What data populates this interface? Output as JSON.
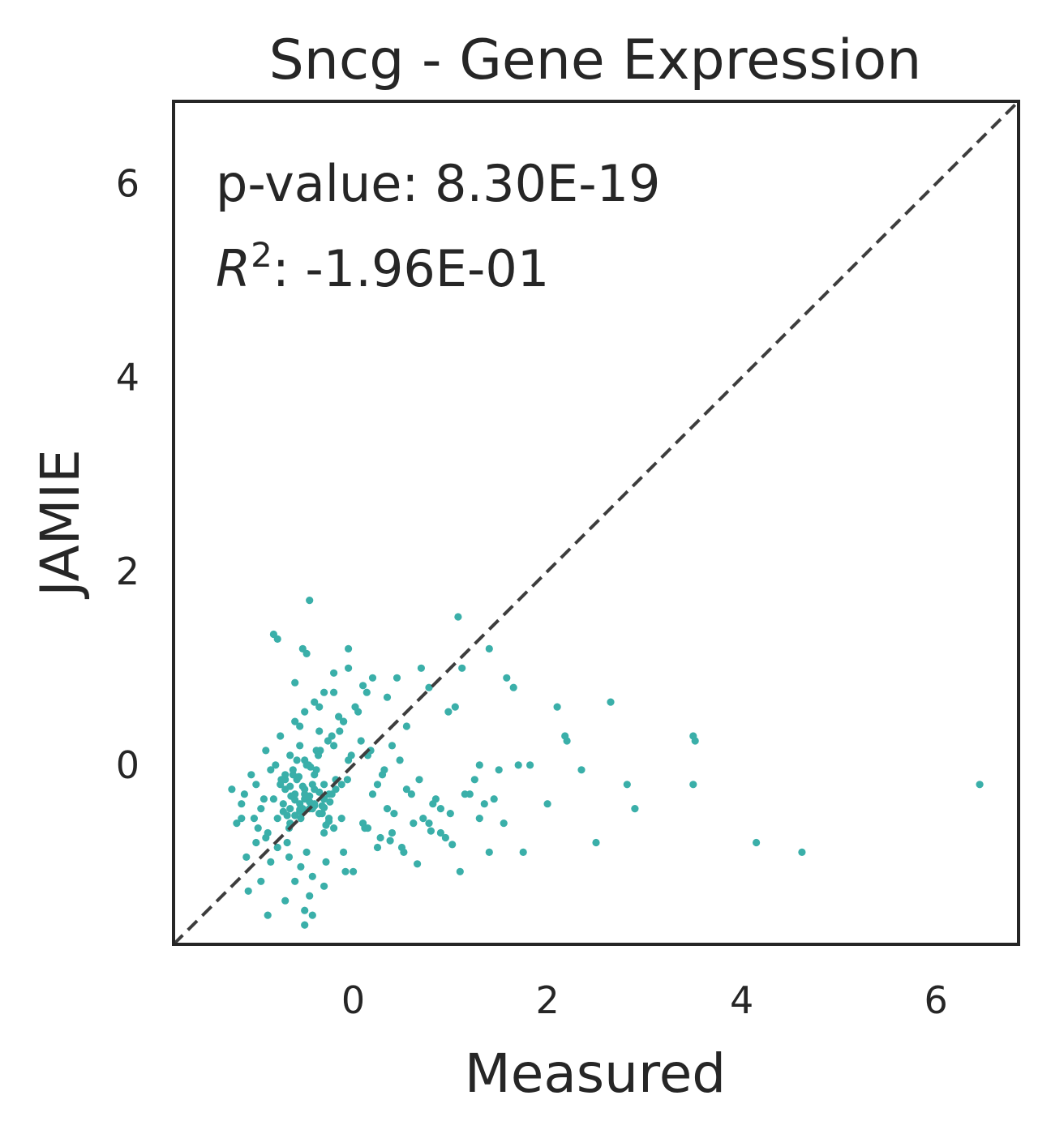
{
  "chart_data": {
    "type": "scatter",
    "title": "Sncg - Gene Expression",
    "xlabel": "Measured",
    "ylabel": "JAMIE",
    "xlim": [
      -1.85,
      6.85
    ],
    "ylim": [
      -1.85,
      6.85
    ],
    "xticks": [
      0,
      2,
      4,
      6
    ],
    "yticks": [
      0,
      2,
      4,
      6
    ],
    "grid": false,
    "point_color": "#3aafa9",
    "reference_line": {
      "style": "dashed",
      "color": "#3d3d3d",
      "slope": 1,
      "intercept": 0
    },
    "annotations": {
      "pvalue_label": "p-value: 8.30E-19",
      "r2_symbol": "R",
      "r2_exponent": "2",
      "r2_value": ": -1.96E-01"
    },
    "series": [
      {
        "values_note_excluded": false,
        "x": [
          -0.45,
          1.08,
          -0.78,
          -0.82,
          -0.48,
          -0.52,
          -0.05,
          0.2,
          -0.6,
          -0.3,
          0.45,
          0.7,
          1.4,
          1.65,
          1.58,
          1.12,
          1.05,
          0.78,
          0.35,
          -0.1,
          -0.2,
          0.05,
          2.65,
          2.1,
          2.2,
          2.35,
          2.18,
          3.5,
          3.52,
          3.5,
          2.82,
          2.9,
          2.0,
          1.75,
          1.55,
          1.3,
          1.4,
          1.1,
          0.95,
          0.82,
          6.45,
          4.15,
          4.62,
          2.5,
          1.82,
          1.3,
          0.98,
          0.55,
          0.4,
          0.48,
          0.3,
          0.15,
          0.2,
          0.42,
          -0.15,
          -0.35,
          -0.55,
          -0.75,
          -0.9,
          -1.05,
          -1.15,
          -1.2,
          -1.0,
          -0.85,
          -0.6,
          -0.45,
          -0.5,
          -0.7,
          -0.95,
          -1.1,
          -0.3,
          -0.1,
          0.0,
          0.1,
          -0.25,
          -0.4,
          -0.65,
          -0.8,
          -0.55,
          -0.35,
          -0.2,
          -0.05,
          0.25,
          0.35,
          0.6,
          0.72,
          0.85,
          1.0,
          1.25,
          1.5,
          1.7,
          1.35,
          1.2,
          0.9,
          0.62,
          0.5,
          0.28,
          0.12,
          -0.12,
          -0.32,
          -0.52,
          -0.72,
          -0.92,
          -1.12,
          -1.25,
          -0.88,
          -0.68,
          -0.48,
          -0.28,
          -0.08,
          -0.62,
          -0.42,
          -0.22,
          -0.58,
          -0.38,
          -0.18,
          -0.78,
          -0.98,
          -0.5,
          -0.45,
          -0.4,
          -0.55,
          -0.6,
          -0.35,
          -0.3,
          -0.65,
          -0.7,
          -0.25,
          -0.2,
          -0.75,
          -0.5,
          -0.45,
          -0.4,
          -0.55,
          -0.6,
          -0.35,
          -0.3,
          -0.65,
          -0.7,
          -0.25,
          -0.5,
          -0.45,
          -0.4,
          -0.55,
          -0.6,
          -0.35,
          -0.3,
          -0.65,
          0.32,
          0.18,
          0.08,
          -0.02,
          -0.12,
          0.55,
          0.68,
          0.78,
          0.9,
          1.15,
          1.45,
          0.4,
          0.25,
          -0.85,
          -1.0,
          -1.15,
          -0.95,
          -0.82,
          -0.7,
          -0.58,
          -0.46,
          -0.34,
          -0.22,
          -0.1,
          0.02,
          0.14,
          -0.66,
          -0.54,
          -0.42,
          -0.3,
          -0.18,
          -0.06,
          -0.74,
          -0.62,
          -0.5,
          -0.38,
          -0.26,
          -0.14,
          -0.9,
          -0.78,
          -0.66,
          -0.54,
          -0.42,
          -0.3,
          -0.5,
          -0.4,
          -0.6,
          -0.48,
          -0.36,
          -0.56,
          -0.44,
          -0.52,
          -0.64,
          -0.32,
          -0.28,
          -0.68,
          -0.72,
          -0.24,
          0.15,
          0.38,
          0.52,
          0.66,
          0.8,
          1.02,
          -0.2,
          -0.05,
          0.1,
          -0.88,
          -1.02,
          -1.08,
          -0.5,
          -0.42
        ],
        "y": [
          1.7,
          1.53,
          1.3,
          1.35,
          1.15,
          1.2,
          1.2,
          0.9,
          0.85,
          0.75,
          0.9,
          1.0,
          1.2,
          0.8,
          0.9,
          1.0,
          0.6,
          0.8,
          0.7,
          0.45,
          0.75,
          0.55,
          0.65,
          0.6,
          0.25,
          -0.05,
          0.3,
          0.3,
          0.25,
          -0.2,
          -0.2,
          -0.45,
          -0.4,
          -0.9,
          -0.6,
          -0.55,
          -0.9,
          -1.1,
          -0.75,
          -0.4,
          -0.2,
          -0.8,
          -0.9,
          -0.8,
          0.0,
          0.0,
          0.55,
          0.4,
          0.2,
          0.05,
          -0.1,
          0.1,
          -0.3,
          -0.5,
          0.5,
          0.6,
          0.4,
          0.3,
          0.15,
          -0.1,
          -0.4,
          -0.6,
          -0.8,
          -1.0,
          -1.2,
          -1.35,
          -1.5,
          -1.4,
          -1.2,
          -0.95,
          -0.7,
          -0.9,
          -1.1,
          -0.6,
          -0.3,
          -0.1,
          0.1,
          0.0,
          0.2,
          0.35,
          0.2,
          0.05,
          -0.2,
          -0.45,
          -0.3,
          -0.55,
          -0.35,
          -0.5,
          -0.15,
          -0.05,
          0.0,
          -0.4,
          -0.3,
          -0.7,
          -0.6,
          -0.85,
          -0.75,
          -0.65,
          -0.55,
          -0.5,
          -0.45,
          -0.4,
          -0.35,
          -0.3,
          -0.25,
          -0.7,
          -0.8,
          -0.9,
          -1.0,
          -1.1,
          -0.1,
          -0.2,
          -0.3,
          0.05,
          -0.05,
          -0.15,
          -0.55,
          -0.65,
          -0.35,
          -0.45,
          -0.25,
          -0.4,
          -0.3,
          -0.5,
          -0.2,
          -0.6,
          -0.1,
          -0.55,
          -0.65,
          -0.2,
          -0.3,
          -0.38,
          -0.42,
          -0.48,
          -0.52,
          -0.28,
          -0.35,
          -0.45,
          -0.15,
          -0.58,
          -0.25,
          -0.32,
          -0.4,
          -0.46,
          -0.36,
          -0.5,
          -0.44,
          -0.22,
          -0.05,
          0.15,
          0.25,
          0.1,
          -0.2,
          -0.25,
          -0.15,
          -0.6,
          -0.45,
          -0.3,
          -0.35,
          -0.7,
          -0.85,
          -0.05,
          -0.2,
          -0.55,
          -0.45,
          -0.35,
          -0.25,
          -0.15,
          0.0,
          0.15,
          0.3,
          0.45,
          0.6,
          0.75,
          -0.65,
          -0.55,
          -0.45,
          -0.35,
          -0.25,
          -0.15,
          -0.15,
          -0.05,
          0.05,
          0.15,
          0.25,
          0.35,
          -0.75,
          -0.85,
          -0.95,
          -1.05,
          -1.15,
          -1.25,
          0.55,
          0.65,
          0.45,
          0.0,
          0.1,
          -0.12,
          -0.02,
          -0.22,
          -0.32,
          -0.42,
          -0.62,
          -0.52,
          -0.48,
          -0.38,
          -0.65,
          -0.78,
          -0.9,
          -1.02,
          -0.68,
          -0.82,
          0.95,
          1.0,
          0.82,
          -1.55,
          -0.55,
          -1.3,
          -1.65,
          -1.55
        ]
      }
    ]
  }
}
